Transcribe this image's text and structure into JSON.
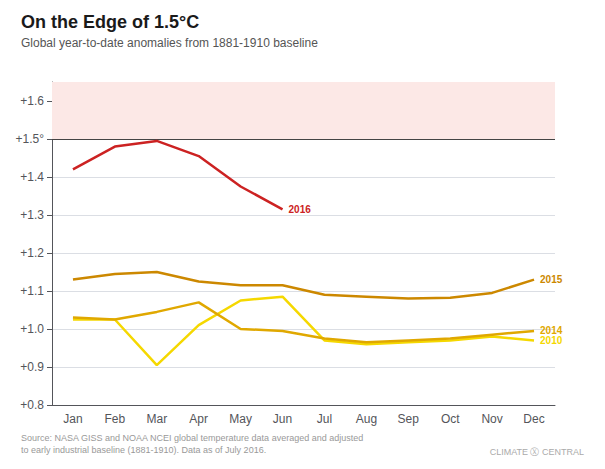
{
  "chart_data": {
    "type": "line",
    "title": "On the Edge of 1.5°C",
    "subtitle": "Global year-to-date anomalies from 1881-1910 baseline",
    "source_text": "Source: NASA GISS and NOAA NCEI global temperature data averaged and adjusted\nto early industrial baseline (1881-1910). Data as of July 2016.",
    "credit_text": "CLIMATE Ⓧ CENTRAL",
    "categories": [
      "Jan",
      "Feb",
      "Mar",
      "Apr",
      "May",
      "Jun",
      "Jul",
      "Aug",
      "Sep",
      "Oct",
      "Nov",
      "Dec"
    ],
    "series": [
      {
        "name": "2010",
        "color": "#f5d800",
        "values": [
          1.025,
          1.025,
          0.905,
          1.01,
          1.075,
          1.085,
          0.97,
          0.96,
          0.965,
          0.97,
          0.98,
          0.97
        ]
      },
      {
        "name": "2014",
        "color": "#e0a800",
        "values": [
          1.03,
          1.025,
          1.045,
          1.07,
          1.0,
          0.995,
          0.975,
          0.965,
          0.97,
          0.975,
          0.985,
          0.995
        ]
      },
      {
        "name": "2015",
        "color": "#cc8800",
        "values": [
          1.13,
          1.145,
          1.15,
          1.125,
          1.115,
          1.115,
          1.09,
          1.085,
          1.08,
          1.082,
          1.095,
          1.13
        ]
      },
      {
        "name": "2016",
        "color": "#cc2222",
        "values": [
          1.42,
          1.48,
          1.495,
          1.455,
          1.375,
          1.315,
          null,
          null,
          null,
          null,
          null,
          null
        ]
      }
    ],
    "ylim": [
      0.8,
      1.65
    ],
    "yticks": [
      {
        "value": 0.8,
        "label": "+0.8"
      },
      {
        "value": 0.9,
        "label": "+0.9"
      },
      {
        "value": 1.0,
        "label": "+1.0"
      },
      {
        "value": 1.1,
        "label": "+1.1"
      },
      {
        "value": 1.2,
        "label": "+1.2"
      },
      {
        "value": 1.3,
        "label": "+1.3"
      },
      {
        "value": 1.4,
        "label": "+1.4"
      },
      {
        "value": 1.5,
        "label": "+1.5°"
      },
      {
        "value": 1.6,
        "label": "+1.6"
      }
    ],
    "grid": true,
    "threshold_line": {
      "value": 1.5,
      "color": "#444444"
    },
    "shaded_range": {
      "from": 1.5,
      "to": 1.65,
      "color": "#fce8e6"
    }
  }
}
